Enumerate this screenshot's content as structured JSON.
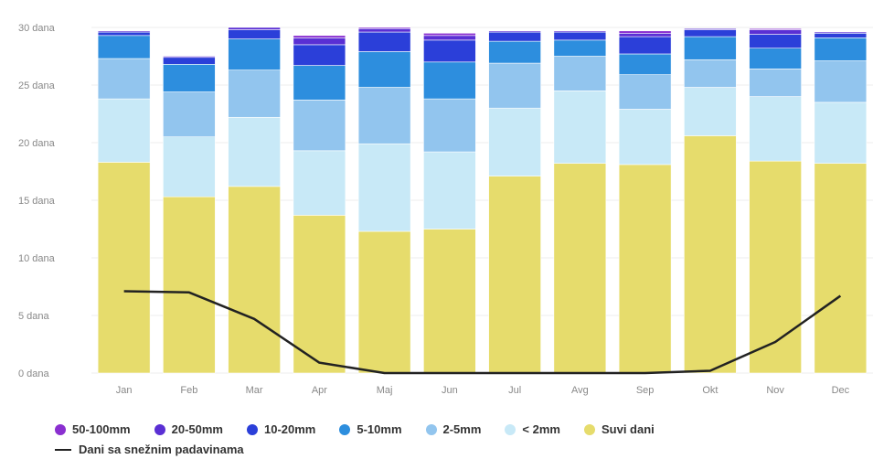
{
  "chart_data": {
    "type": "bar",
    "stacked": true,
    "categories": [
      "Jan",
      "Feb",
      "Mar",
      "Apr",
      "Maj",
      "Jun",
      "Jul",
      "Avg",
      "Sep",
      "Okt",
      "Nov",
      "Dec"
    ],
    "ylim": [
      0,
      30
    ],
    "yticks": [
      "0 dana",
      "5 dana",
      "10 dana",
      "15 dana",
      "20 dana",
      "25 dana",
      "30 dana"
    ],
    "grid": true,
    "legend_position": "bottom",
    "series": [
      {
        "name": "Suvi dani",
        "color": "#e6dc6c",
        "values": [
          18.3,
          15.3,
          16.2,
          13.7,
          12.3,
          12.5,
          17.1,
          18.2,
          18.1,
          20.6,
          18.4,
          18.2
        ]
      },
      {
        "name": "< 2mm",
        "color": "#c8e9f7",
        "values": [
          5.5,
          5.2,
          6.0,
          5.6,
          7.6,
          6.7,
          5.9,
          6.3,
          4.8,
          4.2,
          5.6,
          5.3
        ]
      },
      {
        "name": "2-5mm",
        "color": "#92c5ee",
        "values": [
          3.5,
          3.9,
          4.1,
          4.4,
          4.9,
          4.6,
          3.9,
          3.0,
          3.0,
          2.4,
          2.4,
          3.6
        ]
      },
      {
        "name": "5-10mm",
        "color": "#2d8ede",
        "values": [
          2.0,
          2.4,
          2.7,
          3.0,
          3.1,
          3.2,
          1.9,
          1.4,
          1.8,
          2.0,
          1.8,
          2.0
        ]
      },
      {
        "name": "10-20mm",
        "color": "#2b3fd9",
        "values": [
          0.3,
          0.6,
          0.8,
          1.8,
          1.7,
          1.9,
          0.8,
          0.7,
          1.5,
          0.6,
          1.2,
          0.4
        ]
      },
      {
        "name": "20-50mm",
        "color": "#5a2fd4",
        "values": [
          0.1,
          0.1,
          0.2,
          0.6,
          0.3,
          0.4,
          0.1,
          0.1,
          0.3,
          0.1,
          0.4,
          0.1
        ]
      },
      {
        "name": "50-100mm",
        "color": "#8a2fd0",
        "values": [
          0,
          0,
          0,
          0.2,
          0.1,
          0.2,
          0,
          0,
          0.2,
          0,
          0.1,
          0
        ]
      }
    ],
    "line_series": {
      "name": "Dani sa snežnim padavinama",
      "color": "#222222",
      "values": [
        7.1,
        7.0,
        4.7,
        0.9,
        0,
        0,
        0,
        0,
        0,
        0.2,
        2.7,
        6.7
      ]
    },
    "legend_order_row1": [
      "50-100mm",
      "20-50mm",
      "10-20mm",
      "5-10mm",
      "2-5mm",
      "< 2mm",
      "Suvi dani"
    ]
  }
}
